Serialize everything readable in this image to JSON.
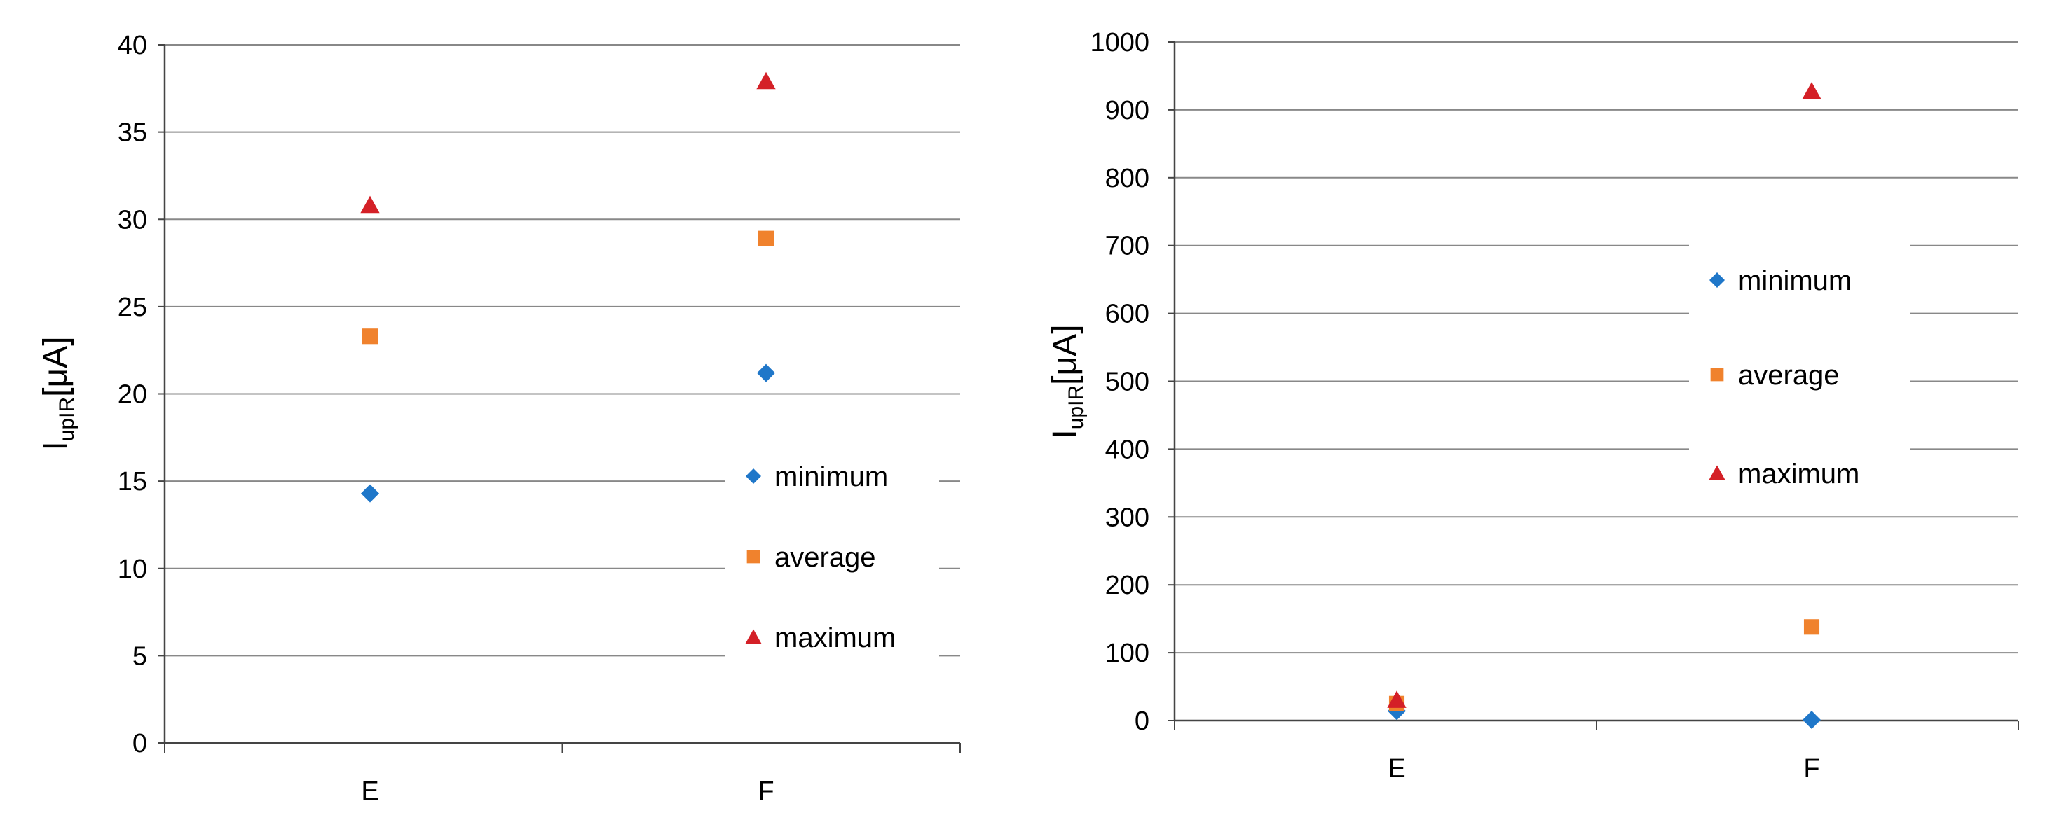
{
  "colors": {
    "minimum": "#1f77c9",
    "average": "#f0822d",
    "maximum": "#d42027",
    "grid": "#888888",
    "axis": "#444444"
  },
  "series_names": [
    "minimum",
    "average",
    "maximum"
  ],
  "chart_data": [
    {
      "type": "scatter",
      "categories": [
        "E",
        "F"
      ],
      "ylabel": {
        "main": "I",
        "sub": "upIR",
        "unit": "[μA]"
      },
      "ylim": [
        0,
        40
      ],
      "yticks": [
        0,
        5,
        10,
        15,
        20,
        25,
        30,
        35,
        40
      ],
      "grid": true,
      "legend": "bottom-right",
      "series": [
        {
          "name": "minimum",
          "marker": "diamond",
          "values": [
            14.3,
            21.2
          ]
        },
        {
          "name": "average",
          "marker": "square",
          "values": [
            23.3,
            28.9
          ]
        },
        {
          "name": "maximum",
          "marker": "triangle",
          "values": [
            30.8,
            37.9
          ]
        }
      ]
    },
    {
      "type": "scatter",
      "categories": [
        "E",
        "F"
      ],
      "ylabel": {
        "main": "I",
        "sub": "upIR",
        "unit": "[μA]"
      },
      "ylim": [
        0,
        1000
      ],
      "yticks": [
        0,
        100,
        200,
        300,
        400,
        500,
        600,
        700,
        800,
        900,
        1000
      ],
      "grid": true,
      "legend": "center-right",
      "series": [
        {
          "name": "minimum",
          "marker": "diamond",
          "values": [
            14,
            1
          ]
        },
        {
          "name": "average",
          "marker": "square",
          "values": [
            25,
            138
          ]
        },
        {
          "name": "maximum",
          "marker": "triangle",
          "values": [
            30,
            927
          ]
        }
      ]
    }
  ]
}
